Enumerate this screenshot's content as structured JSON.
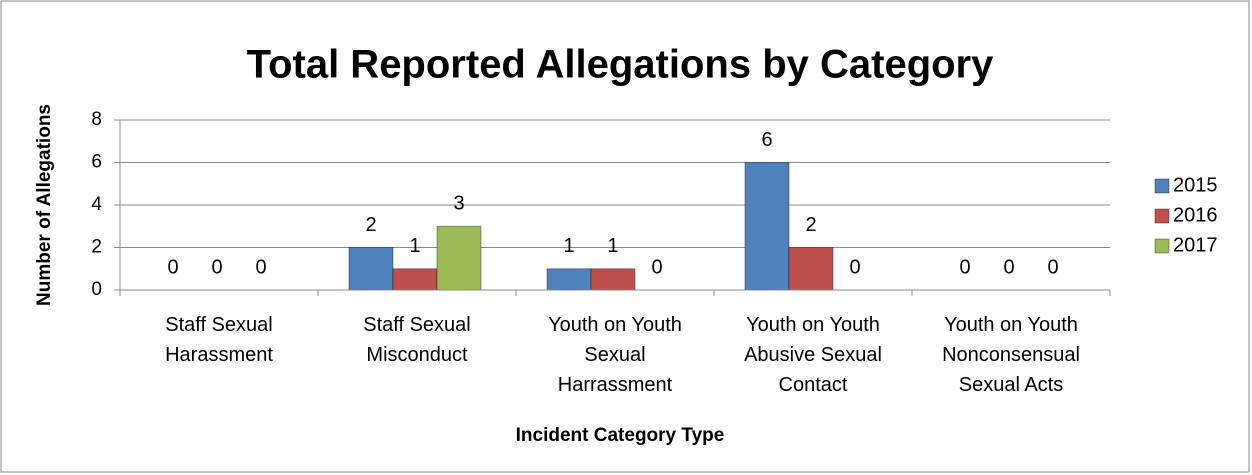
{
  "chart_data": {
    "type": "bar",
    "title": "Total Reported Allegations by Category",
    "x_label": "Incident Category Type",
    "y_label": "Number of Allegations",
    "categories": [
      "Staff Sexual Harassment",
      "Staff Sexual Misconduct",
      "Youth on Youth Sexual Harrassment",
      "Youth on Youth Abusive Sexual Contact",
      "Youth on Youth Nonconsensual Sexual Acts"
    ],
    "series": [
      {
        "name": "2015",
        "color": "#4f81bd",
        "values": [
          0,
          2,
          1,
          6,
          0
        ]
      },
      {
        "name": "2016",
        "color": "#c0504d",
        "values": [
          0,
          1,
          1,
          2,
          0
        ]
      },
      {
        "name": "2017",
        "color": "#9bbb59",
        "values": [
          0,
          3,
          0,
          0,
          0
        ]
      }
    ],
    "ylim": [
      0,
      8
    ],
    "yticks": [
      0,
      2,
      4,
      6,
      8
    ],
    "grid": true,
    "legend": "right"
  }
}
